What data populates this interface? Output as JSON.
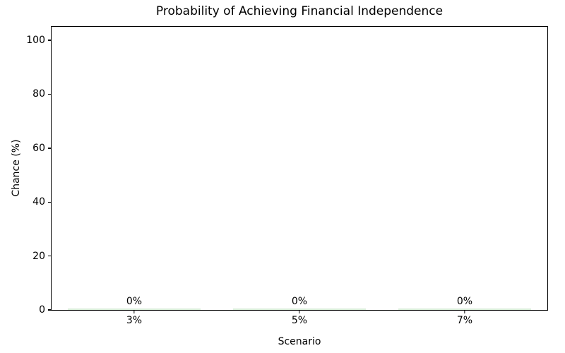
{
  "chart_data": {
    "type": "bar",
    "title": "Probability of Achieving Financial Independence",
    "xlabel": "Scenario",
    "ylabel": "Chance (%)",
    "categories": [
      "3%",
      "5%",
      "7%"
    ],
    "values": [
      0,
      0,
      0
    ],
    "bar_labels": [
      "0%",
      "0%",
      "0%"
    ],
    "ylim": [
      0,
      105
    ],
    "yticks": [
      0,
      20,
      40,
      60,
      80,
      100
    ],
    "bar_color": "#d5ead5",
    "bar_width_fraction": 0.8,
    "grid": false,
    "legend": false,
    "text_color": "#000000",
    "background_color": "#ffffff"
  }
}
